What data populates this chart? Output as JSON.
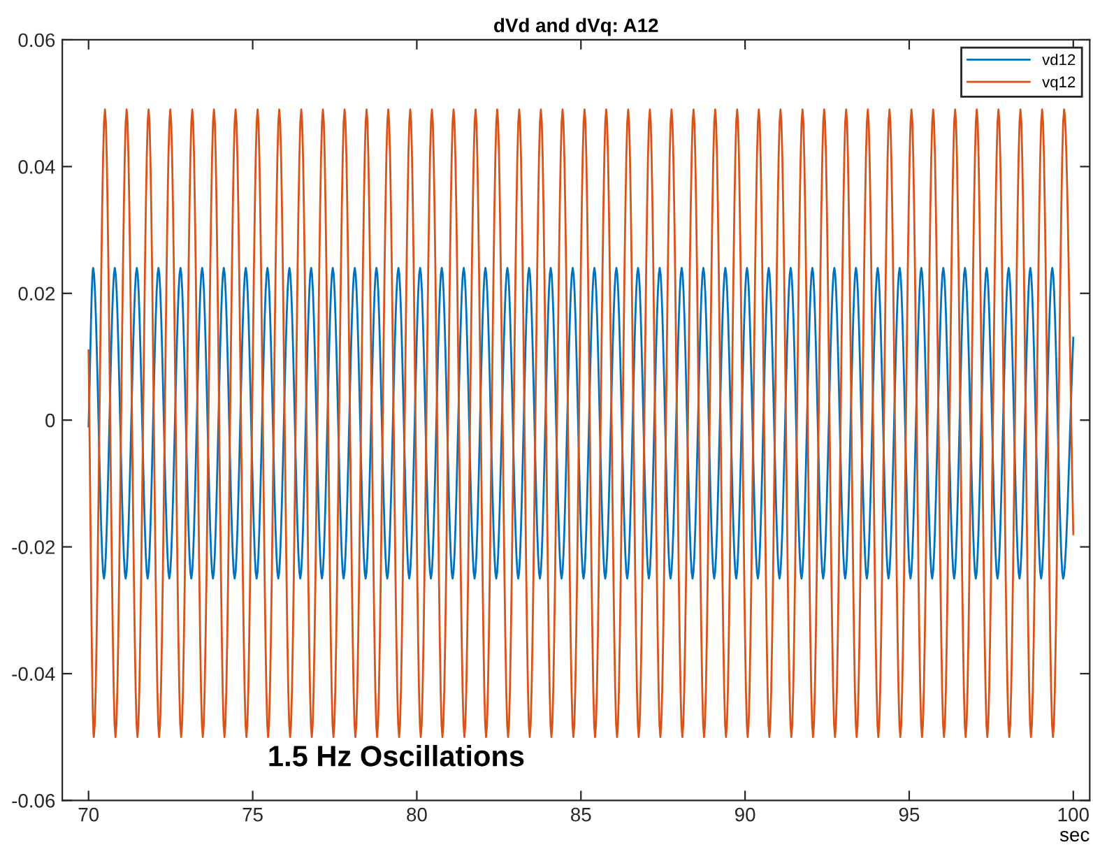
{
  "chart_data": {
    "type": "line",
    "title": "dVd and dVq: A12",
    "xlabel": "sec",
    "xlim": [
      69.2,
      100.5
    ],
    "xticks": [
      70,
      75,
      80,
      85,
      90,
      95,
      100
    ],
    "ylim": [
      -0.06,
      0.06
    ],
    "yticks": [
      -0.06,
      -0.04,
      -0.02,
      0,
      0.02,
      0.04,
      0.06
    ],
    "grid": false,
    "legend": "top right",
    "marker": "none",
    "line_style": "solid",
    "annotations": [
      "1.5 Hz Oscillations"
    ],
    "series": [
      {
        "name": "vd12",
        "color": "#0072bd",
        "x": [
          70,
          70.14,
          70.47,
          70.8,
          71.13,
          71.47,
          71.8,
          72.13,
          72.46,
          72.8,
          73.13,
          73.46,
          73.79,
          74.12,
          74.45,
          74.79,
          75.12,
          75.45,
          75.78,
          76.12,
          76.45,
          76.78,
          77.11,
          77.44,
          77.77,
          78.11,
          78.44,
          78.77,
          79.1,
          79.44,
          79.77,
          80.1,
          80.43,
          80.76,
          81.09,
          81.43,
          81.76,
          82.09,
          82.42,
          82.76,
          83.09,
          83.42,
          83.75,
          84.08,
          84.41,
          84.75,
          85.08,
          85.41,
          85.74,
          86.08,
          86.41,
          86.74,
          87.07,
          87.4,
          87.73,
          88.07,
          88.4,
          88.73,
          89.06,
          89.4,
          89.73,
          90.06,
          90.39,
          90.72,
          91.05,
          91.39,
          91.72,
          92.05,
          92.38,
          92.72,
          93.05,
          93.38,
          93.71,
          94.04,
          94.37,
          94.71,
          95.04,
          95.37,
          95.7,
          96.04,
          96.37,
          96.7,
          97.03,
          97.36,
          97.69,
          98.03,
          98.36,
          98.69,
          99.02,
          99.36,
          99.69,
          100
        ],
        "values": [
          -0.001,
          0.024,
          -0.025,
          0.024,
          -0.025,
          0.024,
          -0.025,
          0.024,
          -0.025,
          0.024,
          -0.025,
          0.024,
          -0.025,
          0.024,
          -0.025,
          0.024,
          -0.025,
          0.024,
          -0.025,
          0.024,
          -0.025,
          0.024,
          -0.025,
          0.024,
          -0.025,
          0.024,
          -0.025,
          0.024,
          -0.025,
          0.024,
          -0.025,
          0.024,
          -0.025,
          0.024,
          -0.025,
          0.024,
          -0.025,
          0.024,
          -0.025,
          0.024,
          -0.025,
          0.024,
          -0.025,
          0.024,
          -0.025,
          0.024,
          -0.025,
          0.024,
          -0.025,
          0.024,
          -0.025,
          0.024,
          -0.025,
          0.024,
          -0.025,
          0.024,
          -0.025,
          0.024,
          -0.025,
          0.024,
          -0.025,
          0.024,
          -0.025,
          0.024,
          -0.025,
          0.024,
          -0.025,
          0.024,
          -0.025,
          0.024,
          -0.025,
          0.024,
          -0.025,
          0.024,
          -0.025,
          0.024,
          -0.025,
          0.024,
          -0.025,
          0.024,
          -0.025,
          0.024,
          -0.025,
          0.024,
          -0.025,
          0.024,
          -0.025,
          0.024,
          -0.025,
          0.024,
          -0.025,
          0.013
        ]
      },
      {
        "name": "vq12",
        "color": "#d95319",
        "x": [
          70,
          70.16,
          70.5,
          70.82,
          71.16,
          71.49,
          71.83,
          72.15,
          72.49,
          72.82,
          73.16,
          73.48,
          73.82,
          74.14,
          74.48,
          74.81,
          75.15,
          75.47,
          75.81,
          76.14,
          76.48,
          76.8,
          77.14,
          77.46,
          77.8,
          78.13,
          78.47,
          78.79,
          79.13,
          79.46,
          79.8,
          80.12,
          80.46,
          80.78,
          81.12,
          81.45,
          81.79,
          82.11,
          82.45,
          82.78,
          83.12,
          83.44,
          83.78,
          84.1,
          84.44,
          84.77,
          85.11,
          85.43,
          85.77,
          86.1,
          86.44,
          86.76,
          87.1,
          87.42,
          87.76,
          88.09,
          88.43,
          88.75,
          89.09,
          89.42,
          89.76,
          90.08,
          90.42,
          90.74,
          91.08,
          91.41,
          91.75,
          92.07,
          92.41,
          92.74,
          93.08,
          93.4,
          93.74,
          94.06,
          94.4,
          94.73,
          95.07,
          95.39,
          95.73,
          96.06,
          96.4,
          96.72,
          97.06,
          97.38,
          97.72,
          98.05,
          98.39,
          98.71,
          99.05,
          99.38,
          99.72,
          100
        ],
        "values": [
          0.011,
          -0.05,
          0.049,
          -0.05,
          0.049,
          -0.05,
          0.049,
          -0.05,
          0.049,
          -0.05,
          0.049,
          -0.05,
          0.049,
          -0.05,
          0.049,
          -0.05,
          0.049,
          -0.05,
          0.049,
          -0.05,
          0.049,
          -0.05,
          0.049,
          -0.05,
          0.049,
          -0.05,
          0.049,
          -0.05,
          0.049,
          -0.05,
          0.049,
          -0.05,
          0.049,
          -0.05,
          0.049,
          -0.05,
          0.049,
          -0.05,
          0.049,
          -0.05,
          0.049,
          -0.05,
          0.049,
          -0.05,
          0.049,
          -0.05,
          0.049,
          -0.05,
          0.049,
          -0.05,
          0.049,
          -0.05,
          0.049,
          -0.05,
          0.049,
          -0.05,
          0.049,
          -0.05,
          0.049,
          -0.05,
          0.049,
          -0.05,
          0.049,
          -0.05,
          0.049,
          -0.05,
          0.049,
          -0.05,
          0.049,
          -0.05,
          0.049,
          -0.05,
          0.049,
          -0.05,
          0.049,
          -0.05,
          0.049,
          -0.05,
          0.049,
          -0.05,
          0.049,
          -0.05,
          0.049,
          -0.05,
          0.049,
          -0.05,
          0.049,
          -0.05,
          0.049,
          -0.05,
          0.049,
          -0.018
        ]
      }
    ]
  }
}
